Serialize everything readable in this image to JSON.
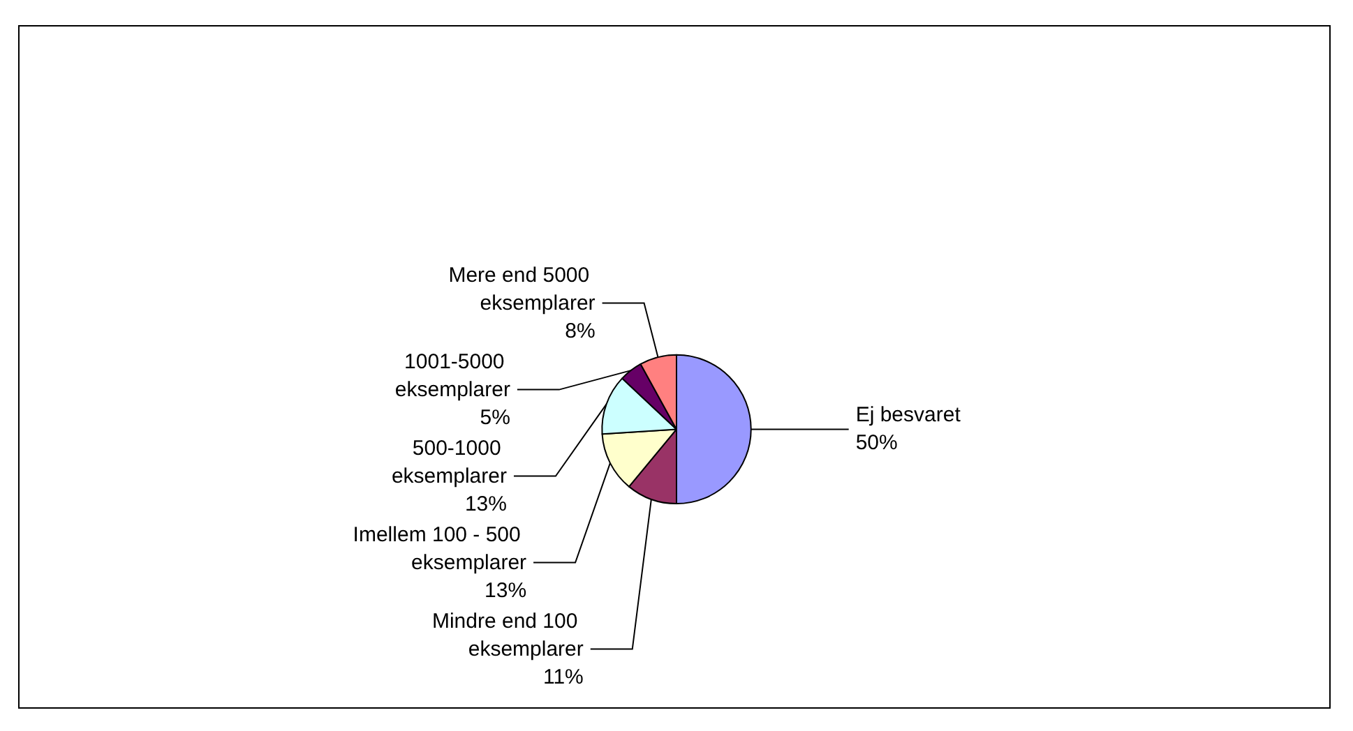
{
  "chart_data": {
    "type": "pie",
    "categories": [
      "Ej besvaret",
      "Mindre end 100 eksemplarer",
      "Imellem 100 - 500 eksemplarer",
      "500-1000 eksemplarer",
      "1001-5000 eksemplarer",
      "Mere end 5000 eksemplarer"
    ],
    "values": [
      50,
      11,
      13,
      13,
      5,
      8
    ],
    "colors": [
      "#9999ff",
      "#993366",
      "#ffffcc",
      "#ccffff",
      "#660066",
      "#ff8080"
    ],
    "value_labels": [
      "50%",
      "11%",
      "13%",
      "13%",
      "5%",
      "8%"
    ],
    "legend": false
  }
}
